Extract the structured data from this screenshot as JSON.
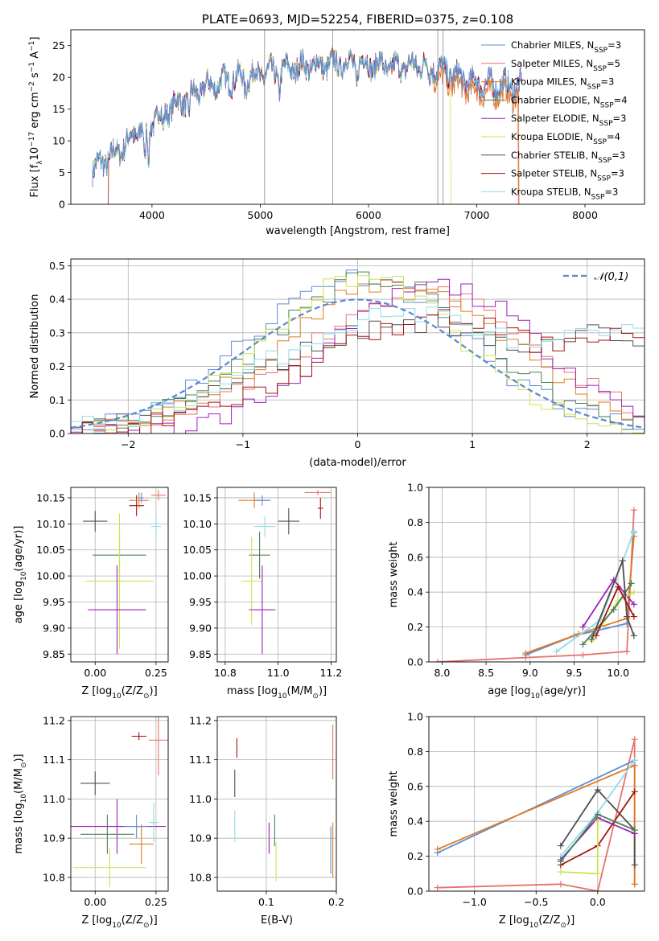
{
  "colors": {
    "grid": "#b0b0b0",
    "axis": "#000000",
    "gauss": "#5b87d0"
  },
  "series_styles": [
    {
      "name": "Chabrier MILES",
      "color": "#5e8dd6"
    },
    {
      "name": "Salpeter MILES",
      "color": "#e8726a"
    },
    {
      "name": "Kroupa MILES",
      "color": "#e07b22"
    },
    {
      "name": "Chabrier ELODIE",
      "color": "#4a7f59"
    },
    {
      "name": "Salpeter ELODIE",
      "color": "#9a22b6"
    },
    {
      "name": "Kroupa ELODIE",
      "color": "#cfe24f"
    },
    {
      "name": "Chabrier STELIB",
      "color": "#4f4f4f"
    },
    {
      "name": "Salpeter STELIB",
      "color": "#a31313"
    },
    {
      "name": "Kroupa STELIB",
      "color": "#8fdde8"
    }
  ],
  "chart_data": [
    {
      "id": "spectrum",
      "type": "line",
      "title": "PLATE=0693, MJD=52254, FIBERID=0375, z=0.108",
      "xlabel": "wavelength [Angstrom, rest frame]",
      "ylabel_main": "Flux [f",
      "ylabel_sub": "λ",
      "ylabel_rest": "10",
      "ylabel_exp": "−17",
      "ylabel_tail": " erg cm",
      "ylabel_exp2": "−2",
      "ylabel_tail2": " s",
      "ylabel_exp3": "−1",
      "ylabel_tail3": " A",
      "ylabel_exp4": "−1",
      "ylabel_end": "]",
      "xlim": [
        3250,
        8550
      ],
      "ylim": [
        0,
        27.5
      ],
      "xticks": [
        4000,
        5000,
        6000,
        7000,
        8000
      ],
      "yticks": [
        0,
        5,
        10,
        15,
        20,
        25
      ],
      "legend_position": "upper-right",
      "legend": [
        {
          "label": "Chabrier MILES, N",
          "sub": "SSP",
          "suffix": "=3"
        },
        {
          "label": "Salpeter MILES, N",
          "sub": "SSP",
          "suffix": "=5"
        },
        {
          "label": "Kroupa MILES, N",
          "sub": "SSP",
          "suffix": "=3"
        },
        {
          "label": "Chabrier ELODIE, N",
          "sub": "SSP",
          "suffix": "=4"
        },
        {
          "label": "Salpeter ELODIE, N",
          "sub": "SSP",
          "suffix": "=3"
        },
        {
          "label": "Kroupa ELODIE, N",
          "sub": "SSP",
          "suffix": "=4"
        },
        {
          "label": "Chabrier STELIB, N",
          "sub": "SSP",
          "suffix": "=3"
        },
        {
          "label": "Salpeter STELIB, N",
          "sub": "SSP",
          "suffix": "=3"
        },
        {
          "label": "Kroupa STELIB, N",
          "sub": "SSP",
          "suffix": "=3"
        }
      ],
      "continuum_knots": {
        "x": [
          3450,
          3700,
          3900,
          4100,
          4300,
          4500,
          4800,
          5000,
          5300,
          5600,
          5900,
          6200,
          6500,
          6700,
          7000,
          7400
        ],
        "y": [
          5.5,
          8.5,
          12,
          14.5,
          16.5,
          18.5,
          20,
          20.5,
          21.5,
          22,
          22.5,
          21.5,
          22,
          21,
          19,
          18.5
        ]
      }
    },
    {
      "id": "residuals",
      "type": "area",
      "xlabel": "(data-model)/error",
      "ylabel": "Normed distribution",
      "xlim": [
        -2.5,
        2.5
      ],
      "ylim": [
        0,
        0.52
      ],
      "xticks": [
        -2,
        -1,
        0,
        1,
        2
      ],
      "yticks": [
        0.0,
        0.1,
        0.2,
        0.3,
        0.4,
        0.5
      ],
      "legend": "𝒩(0,1)",
      "legend_position": "upper-right",
      "hist_centers": [
        0.0,
        0.55,
        0.35,
        0.15,
        0.7,
        0.05,
        0.5,
        0.75,
        0.45
      ],
      "hist_widths": [
        0.95,
        1.0,
        1.0,
        0.95,
        0.9,
        0.85,
        1.25,
        1.15,
        1.2
      ],
      "hist_peaks": [
        0.47,
        0.42,
        0.45,
        0.46,
        0.44,
        0.47,
        0.33,
        0.34,
        0.36
      ]
    },
    {
      "id": "age-vs-z",
      "type": "scatter",
      "xlabel": "Z [log",
      "xlabel_sub": "10",
      "xlabel_rest": "(Z/Z",
      "xlabel_sub2": "⊙",
      "xlabel_end": ")]",
      "ylabel": "age  [log",
      "ylabel_sub": "10",
      "ylabel_rest": "(age/yr)]",
      "xlim": [
        -0.1,
        0.3
      ],
      "ylim": [
        9.835,
        10.17
      ],
      "xticks": [
        "0.00",
        "0.25"
      ],
      "xtick_values": [
        0,
        0.25
      ],
      "yticks": [
        "9.85",
        "9.90",
        "9.95",
        "10.00",
        "10.05",
        "10.10",
        "10.15"
      ],
      "ytick_values": [
        9.85,
        9.9,
        9.95,
        10.0,
        10.05,
        10.1,
        10.15
      ],
      "points": [
        {
          "x": 0.0,
          "y": 10.105,
          "xerr": 0.05,
          "yerr": 0.02,
          "series": 6
        },
        {
          "x": 0.1,
          "y": 10.04,
          "xerr": 0.11,
          "yerr": 0.045,
          "series": 3
        },
        {
          "x": 0.1,
          "y": 9.99,
          "xerr": 0.14,
          "yerr": 0.13,
          "series": 5
        },
        {
          "x": 0.09,
          "y": 9.935,
          "xerr": 0.12,
          "yerr": 0.085,
          "series": 4
        },
        {
          "x": 0.17,
          "y": 10.135,
          "xerr": 0.03,
          "yerr": 0.02,
          "series": 7
        },
        {
          "x": 0.18,
          "y": 10.145,
          "xerr": 0.04,
          "yerr": 0.015,
          "series": 2
        },
        {
          "x": 0.25,
          "y": 10.095,
          "xerr": 0.02,
          "yerr": 0.02,
          "series": 8
        },
        {
          "x": 0.26,
          "y": 10.155,
          "xerr": 0.03,
          "yerr": 0.01,
          "series": 1
        },
        {
          "x": 0.19,
          "y": 10.15,
          "xerr": 0.01,
          "yerr": 0.01,
          "series": 0
        }
      ]
    },
    {
      "id": "age-vs-mass",
      "type": "scatter",
      "xlabel": "mass [log",
      "xlabel_sub": "10",
      "xlabel_rest": "(M/M",
      "xlabel_sub2": "⊙",
      "xlabel_end": ")]",
      "xlim": [
        10.77,
        11.22
      ],
      "ylim": [
        9.835,
        10.17
      ],
      "xticks": [
        "10.8",
        "11.0",
        "11.2"
      ],
      "xtick_values": [
        10.8,
        11.0,
        11.2
      ],
      "yticks": [
        "9.85",
        "9.90",
        "9.95",
        "10.00",
        "10.05",
        "10.10",
        "10.15"
      ],
      "ytick_values": [
        9.85,
        9.9,
        9.95,
        10.0,
        10.05,
        10.1,
        10.15
      ],
      "points": [
        {
          "x": 10.91,
          "y": 10.145,
          "xerr": 0.06,
          "yerr": 0.015,
          "series": 2
        },
        {
          "x": 10.94,
          "y": 10.145,
          "xerr": 0.03,
          "yerr": 0.01,
          "series": 0
        },
        {
          "x": 10.95,
          "y": 10.095,
          "xerr": 0.04,
          "yerr": 0.02,
          "series": 8
        },
        {
          "x": 11.04,
          "y": 10.105,
          "xerr": 0.04,
          "yerr": 0.025,
          "series": 6
        },
        {
          "x": 10.93,
          "y": 10.04,
          "xerr": 0.04,
          "yerr": 0.045,
          "series": 3
        },
        {
          "x": 10.9,
          "y": 9.99,
          "xerr": 0.04,
          "yerr": 0.085,
          "series": 5
        },
        {
          "x": 10.94,
          "y": 9.935,
          "xerr": 0.05,
          "yerr": 0.085,
          "series": 4
        },
        {
          "x": 11.16,
          "y": 10.13,
          "xerr": 0.01,
          "yerr": 0.02,
          "series": 7
        },
        {
          "x": 11.15,
          "y": 10.16,
          "xerr": 0.05,
          "yerr": 0.005,
          "series": 1
        }
      ]
    },
    {
      "id": "weight-vs-age",
      "type": "line",
      "xlabel": "age  [log",
      "xlabel_sub": "10",
      "xlabel_rest": "(age/yr)]",
      "ylabel": "mass weight",
      "xlim": [
        7.85,
        10.3
      ],
      "ylim": [
        0,
        1
      ],
      "xticks": [
        "8.0",
        "8.5",
        "9.0",
        "9.5",
        "10.0"
      ],
      "xtick_values": [
        8.0,
        8.5,
        9.0,
        9.5,
        10.0
      ],
      "yticks": [
        "0.0",
        "0.2",
        "0.4",
        "0.6",
        "0.8",
        "1.0"
      ],
      "ytick_values": [
        0.0,
        0.2,
        0.4,
        0.6,
        0.8,
        1.0
      ],
      "series": [
        {
          "series": 1,
          "x": [
            7.95,
            8.95,
            9.6,
            10.1,
            10.18
          ],
          "y": [
            0.0,
            0.025,
            0.04,
            0.06,
            0.87
          ]
        },
        {
          "series": 0,
          "x": [
            8.95,
            9.5,
            10.1,
            10.18
          ],
          "y": [
            0.04,
            0.15,
            0.22,
            0.74
          ]
        },
        {
          "series": 2,
          "x": [
            8.95,
            9.55,
            10.1,
            10.18
          ],
          "y": [
            0.05,
            0.16,
            0.25,
            0.72
          ]
        },
        {
          "series": 8,
          "x": [
            9.3,
            9.8,
            10.18
          ],
          "y": [
            0.06,
            0.24,
            0.75
          ]
        },
        {
          "series": 4,
          "x": [
            9.6,
            9.95,
            10.18
          ],
          "y": [
            0.2,
            0.47,
            0.33
          ]
        },
        {
          "series": 5,
          "x": [
            9.7,
            10.0,
            10.18
          ],
          "y": [
            0.12,
            0.35,
            0.4
          ]
        },
        {
          "series": 3,
          "x": [
            9.6,
            9.95,
            10.15
          ],
          "y": [
            0.1,
            0.3,
            0.45
          ]
        },
        {
          "series": 6,
          "x": [
            9.7,
            10.05,
            10.1,
            10.18
          ],
          "y": [
            0.13,
            0.58,
            0.26,
            0.15
          ]
        },
        {
          "series": 7,
          "x": [
            9.75,
            10.0,
            10.18
          ],
          "y": [
            0.15,
            0.43,
            0.26
          ]
        }
      ]
    },
    {
      "id": "mass-vs-z",
      "type": "scatter",
      "xlabel": "Z [log",
      "xlabel_sub": "10",
      "xlabel_rest": "(Z/Z",
      "xlabel_sub2": "⊙",
      "xlabel_end": ")]",
      "ylabel": "mass [log",
      "ylabel_sub": "10",
      "ylabel_rest": "(M/M",
      "ylabel_sub2": "⊙",
      "ylabel_end": ")]",
      "xlim": [
        -0.1,
        0.3
      ],
      "ylim": [
        10.765,
        11.21
      ],
      "xticks": [
        "0.00",
        "0.25"
      ],
      "xtick_values": [
        0,
        0.25
      ],
      "yticks": [
        "10.8",
        "10.9",
        "11.0",
        "11.1",
        "11.2"
      ],
      "ytick_values": [
        10.8,
        10.9,
        11.0,
        11.1,
        11.2
      ],
      "points": [
        {
          "x": 0.0,
          "y": 11.04,
          "xerr": 0.06,
          "yerr": 0.03,
          "series": 6
        },
        {
          "x": 0.09,
          "y": 10.93,
          "xerr": 0.2,
          "yerr": 0.07,
          "series": 4
        },
        {
          "x": 0.05,
          "y": 10.91,
          "xerr": 0.11,
          "yerr": 0.05,
          "series": 3
        },
        {
          "x": 0.06,
          "y": 10.825,
          "xerr": 0.15,
          "yerr": 0.05,
          "series": 5
        },
        {
          "x": 0.19,
          "y": 10.885,
          "xerr": 0.05,
          "yerr": 0.05,
          "series": 2
        },
        {
          "x": 0.17,
          "y": 10.93,
          "xerr": 0.05,
          "yerr": 0.03,
          "series": 0
        },
        {
          "x": 0.18,
          "y": 11.16,
          "xerr": 0.03,
          "yerr": 0.01,
          "series": 7
        },
        {
          "x": 0.26,
          "y": 11.15,
          "xerr": 0.04,
          "yerr": 0.09,
          "series": 1
        },
        {
          "x": 0.24,
          "y": 10.94,
          "xerr": 0.02,
          "yerr": 0.05,
          "series": 8
        }
      ]
    },
    {
      "id": "mass-vs-ebv",
      "type": "scatter",
      "xlabel": "E(B-V)",
      "xlim": [
        0.03,
        0.2
      ],
      "ylim": [
        10.765,
        11.21
      ],
      "xticks": [
        "0.1",
        "0.2"
      ],
      "xtick_values": [
        0.1,
        0.2
      ],
      "yticks": [
        "10.8",
        "10.9",
        "11.0",
        "11.1",
        "11.2"
      ],
      "ytick_values": [
        10.8,
        10.9,
        11.0,
        11.1,
        11.2
      ],
      "points": [
        {
          "x": 0.058,
          "y": 11.13,
          "xerr": 0,
          "yerr": 0.025,
          "series": 7
        },
        {
          "x": 0.055,
          "y": 11.04,
          "xerr": 0,
          "yerr": 0.035,
          "series": 6
        },
        {
          "x": 0.055,
          "y": 10.93,
          "xerr": 0,
          "yerr": 0.04,
          "series": 8
        },
        {
          "x": 0.104,
          "y": 10.9,
          "xerr": 0,
          "yerr": 0.04,
          "series": 4
        },
        {
          "x": 0.112,
          "y": 10.92,
          "xerr": 0,
          "yerr": 0.04,
          "series": 3
        },
        {
          "x": 0.114,
          "y": 10.84,
          "xerr": 0,
          "yerr": 0.05,
          "series": 5
        },
        {
          "x": 0.192,
          "y": 10.87,
          "xerr": 0,
          "yerr": 0.06,
          "series": 0
        },
        {
          "x": 0.195,
          "y": 10.87,
          "xerr": 0,
          "yerr": 0.07,
          "series": 2
        },
        {
          "x": 0.195,
          "y": 11.12,
          "xerr": 0,
          "yerr": 0.07,
          "series": 1
        }
      ]
    },
    {
      "id": "weight-vs-z",
      "type": "line",
      "xlabel": "Z [log",
      "xlabel_sub": "10",
      "xlabel_rest": "(Z/Z",
      "xlabel_sub2": "⊙",
      "xlabel_end": ")]",
      "ylabel": "mass weight",
      "xlim": [
        -1.37,
        0.38
      ],
      "ylim": [
        0,
        1
      ],
      "xticks": [
        "−1.0",
        "−0.5",
        "0.0"
      ],
      "xtick_values": [
        -1.0,
        -0.5,
        0.0
      ],
      "yticks": [
        "0.0",
        "0.2",
        "0.4",
        "0.6",
        "0.8",
        "1.0"
      ],
      "ytick_values": [
        0.0,
        0.2,
        0.4,
        0.6,
        0.8,
        1.0
      ],
      "series": [
        {
          "series": 1,
          "x": [
            -1.3,
            -0.3,
            0.0,
            0.3,
            0.3
          ],
          "y": [
            0.02,
            0.04,
            0.0,
            0.87,
            0.04
          ]
        },
        {
          "series": 0,
          "x": [
            -1.3,
            0.3
          ],
          "y": [
            0.22,
            0.75
          ]
        },
        {
          "series": 2,
          "x": [
            -1.3,
            0.3,
            0.3
          ],
          "y": [
            0.24,
            0.72,
            0.04
          ]
        },
        {
          "series": 6,
          "x": [
            -0.3,
            0.0,
            0.3,
            0.3
          ],
          "y": [
            0.26,
            0.58,
            0.35,
            0.15
          ]
        },
        {
          "series": 7,
          "x": [
            -0.3,
            0.0,
            0.3
          ],
          "y": [
            0.15,
            0.26,
            0.57
          ]
        },
        {
          "series": 8,
          "x": [
            -0.3,
            0.0,
            0.3
          ],
          "y": [
            0.2,
            0.45,
            0.75
          ]
        },
        {
          "series": 4,
          "x": [
            -0.3,
            0.0,
            0.3
          ],
          "y": [
            0.18,
            0.42,
            0.33
          ]
        },
        {
          "series": 5,
          "x": [
            -0.3,
            0.0,
            0.0
          ],
          "y": [
            0.11,
            0.1,
            0.4
          ]
        },
        {
          "series": 3,
          "x": [
            -0.3,
            0.0,
            0.3
          ],
          "y": [
            0.17,
            0.44,
            0.35
          ]
        }
      ]
    }
  ]
}
